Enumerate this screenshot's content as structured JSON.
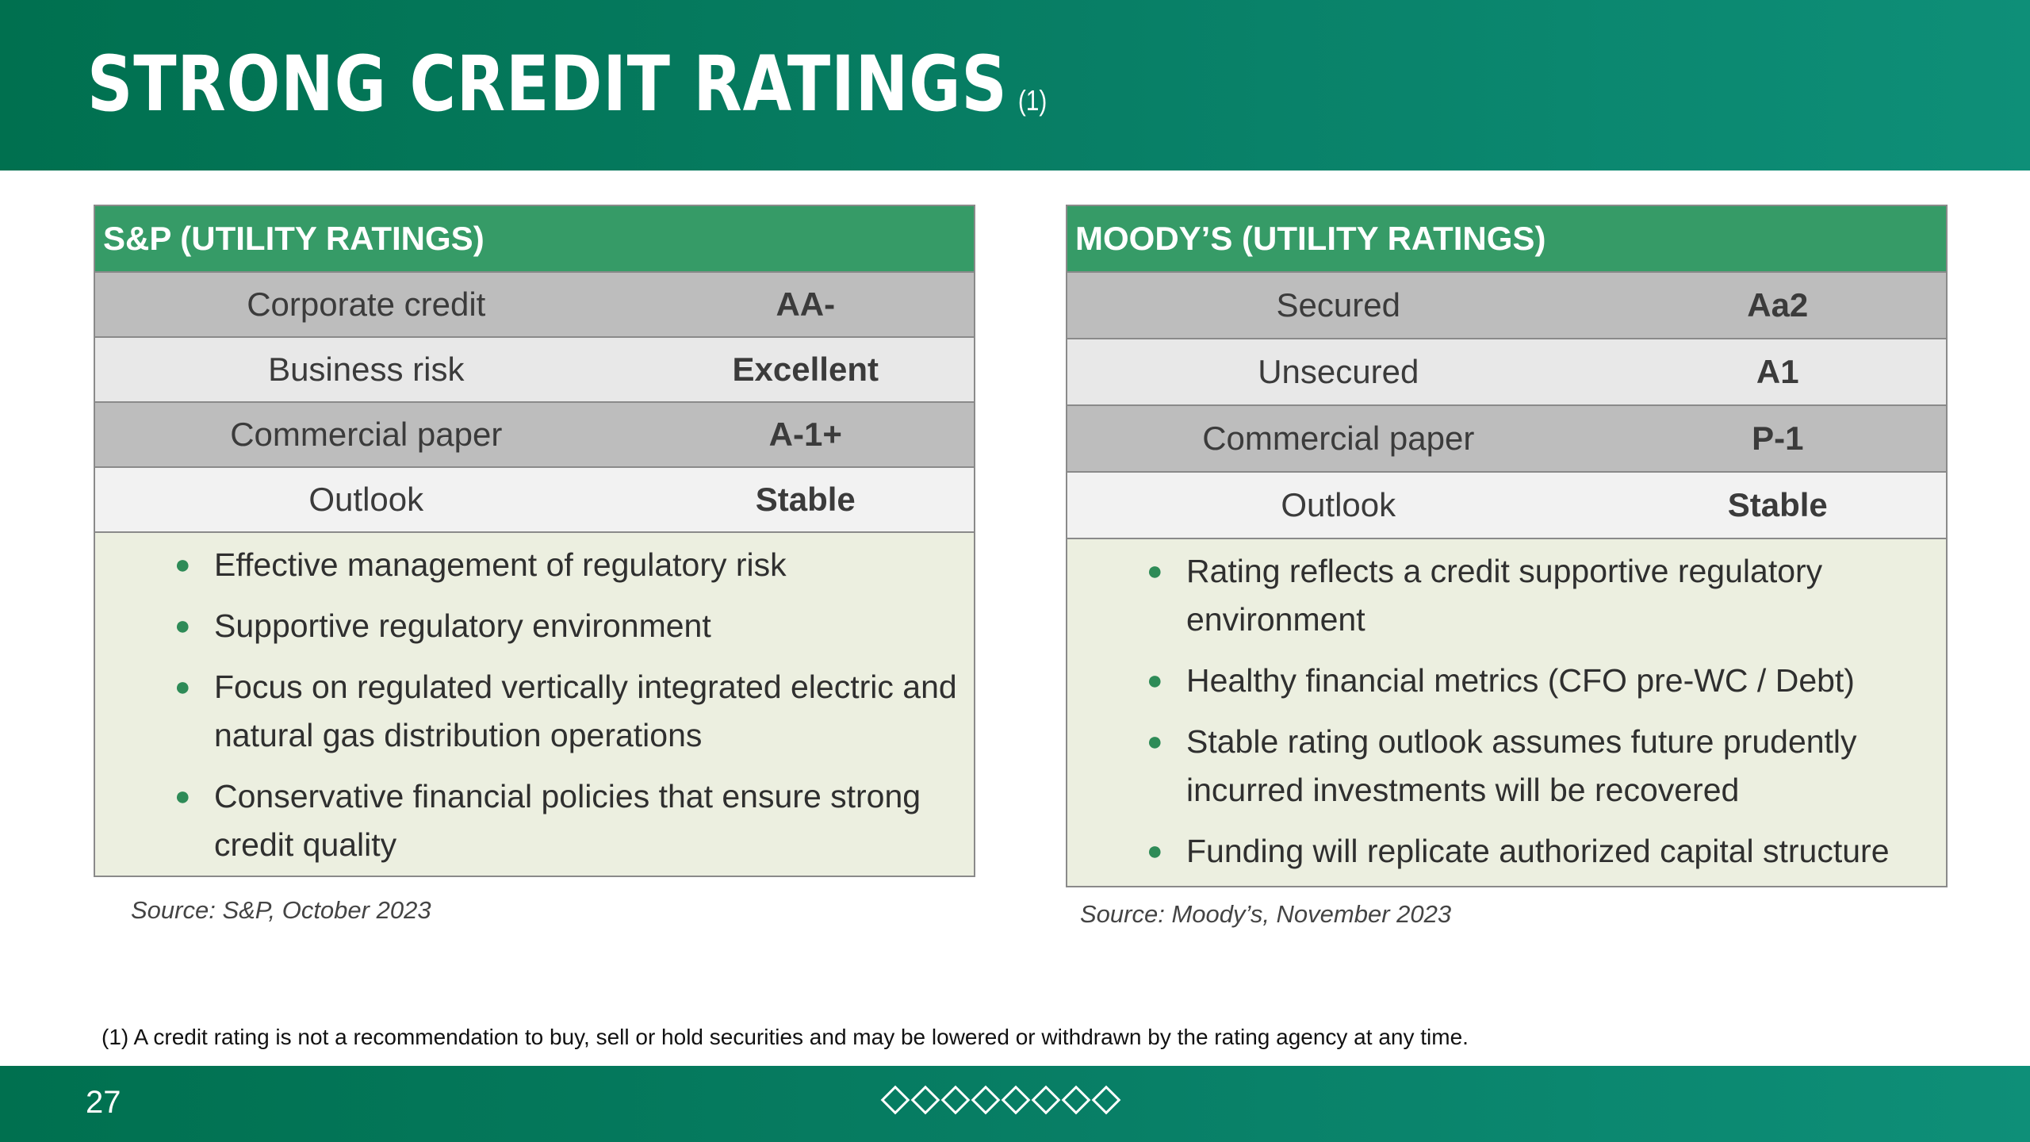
{
  "header": {
    "title": "STRONG CREDIT RATINGS",
    "title_footnote_ref": "(1)"
  },
  "sp": {
    "heading": "S&P (UTILITY RATINGS)",
    "rows": [
      {
        "label": "Corporate credit",
        "value": "AA-"
      },
      {
        "label": "Business risk",
        "value": "Excellent"
      },
      {
        "label": "Commercial paper",
        "value": "A-1+"
      },
      {
        "label": "Outlook",
        "value": "Stable"
      }
    ],
    "bullets": [
      "Effective management of regulatory risk",
      "Supportive regulatory environment",
      "Focus on regulated vertically integrated electric and natural gas distribution operations",
      "Conservative financial policies that ensure strong credit quality"
    ],
    "source": "Source: S&P, October 2023"
  },
  "moodys": {
    "heading": "MOODY’S (UTILITY RATINGS)",
    "rows": [
      {
        "label": "Secured",
        "value": "Aa2"
      },
      {
        "label": "Unsecured",
        "value": "A1"
      },
      {
        "label": "Commercial paper",
        "value": "P-1"
      },
      {
        "label": "Outlook",
        "value": "Stable"
      }
    ],
    "bullets": [
      "Rating reflects a credit supportive regulatory environment",
      "Healthy financial metrics (CFO pre-WC / Debt)",
      "Stable rating outlook assumes future prudently incurred investments will be recovered",
      "Funding will replicate authorized capital structure"
    ],
    "source": "Source: Moody’s, November 2023"
  },
  "footnote": "(1)  A credit rating is not a recommendation to buy, sell or hold securities and may be lowered or withdrawn by the rating agency at any time.",
  "footer": {
    "page_number": "27",
    "decoration": "diamond-outline-icon"
  },
  "colors": {
    "brand_green": "#00704f",
    "header_green": "#369b67",
    "card_background": "#ecefe0",
    "row_dark": "#bdbdbd",
    "row_light": "#e8e8e8"
  }
}
